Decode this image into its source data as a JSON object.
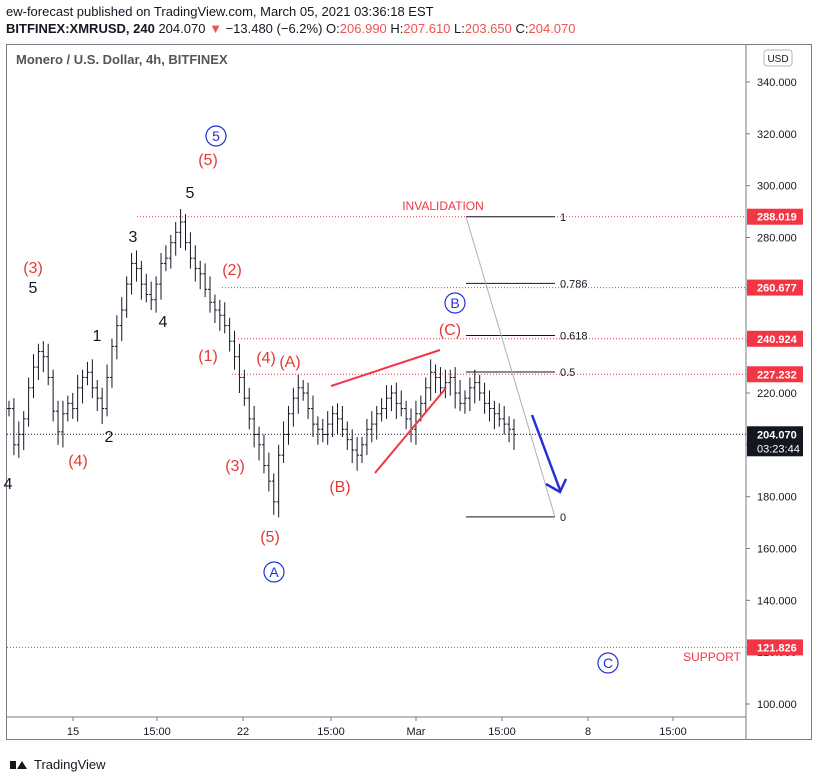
{
  "header": {
    "publisher": "ew-forecast published on TradingView.com, March 05, 2021 03:36:18 EST",
    "symbol": "BITFINEX:XMRUSD, 240",
    "last": "204.070",
    "arrow": "▼",
    "change": "−13.480 (−6.2%)",
    "o_label": "O:",
    "o": "206.990",
    "h_label": "H:",
    "h": "207.610",
    "l_label": "L:",
    "l": "203.650",
    "c_label": "C:",
    "c": "204.070"
  },
  "chart_data": {
    "type": "bar",
    "title": "Monero / U.S. Dollar, 4h, BITFINEX",
    "currency_button": "USD",
    "y_ticks": [
      340,
      320,
      300,
      280,
      260,
      240,
      220,
      200,
      180,
      160,
      140,
      120,
      100
    ],
    "y_tick_labels": [
      "340.000",
      "320.000",
      "300.000",
      "280.000",
      "260.000",
      "240.000",
      "220.000",
      "200.000",
      "180.000",
      "160.000",
      "140.000",
      "120.000",
      "100.000"
    ],
    "ylim": [
      94,
      352
    ],
    "x_ticks": [
      "15",
      "15:00",
      "22",
      "15:00",
      "Mar",
      "15:00",
      "8",
      "15:00"
    ],
    "price_labels": [
      {
        "value": 288.019,
        "text": "288.019",
        "color": "#f23645"
      },
      {
        "value": 260.677,
        "text": "260.677",
        "color": "#f23645"
      },
      {
        "value": 240.924,
        "text": "240.924",
        "color": "#f23645"
      },
      {
        "value": 227.232,
        "text": "227.232",
        "color": "#f23645"
      },
      {
        "value": 204.07,
        "text": "204.070",
        "color": "#131722"
      },
      {
        "value": 121.826,
        "text": "121.826",
        "color": "#f23645"
      }
    ],
    "countdown": "03:23:44",
    "fib_levels": [
      {
        "ratio": "1",
        "value": 288.0
      },
      {
        "ratio": "0.786",
        "value": 262.3
      },
      {
        "ratio": "0.618",
        "value": 242.2
      },
      {
        "ratio": "0.5",
        "value": 228.1
      },
      {
        "ratio": "0",
        "value": 172.2
      }
    ],
    "annotations": {
      "invalidation": "INVALIDATION",
      "support": "SUPPORT",
      "wave_labels": [
        "(3)",
        "5",
        "1",
        "(4)",
        "2",
        "3",
        "4",
        "5",
        "(5)",
        "5",
        "(2)",
        "(1)",
        "(4)",
        "(A)",
        "(3)",
        "(5)",
        "A",
        "(B)",
        "B",
        "(C)",
        "C",
        "4"
      ]
    },
    "close_series": [
      214,
      200,
      204,
      210,
      222,
      230,
      236,
      234,
      226,
      213,
      205,
      212,
      216,
      214,
      222,
      226,
      228,
      222,
      218,
      214,
      226,
      238,
      246,
      252,
      262,
      270,
      268,
      262,
      258,
      256,
      262,
      270,
      272,
      278,
      282,
      286,
      278,
      272,
      268,
      266,
      260,
      255,
      252,
      250,
      246,
      240,
      234,
      226,
      218,
      210,
      204,
      200,
      192,
      186,
      178,
      196,
      204,
      212,
      218,
      222,
      220,
      214,
      208,
      206,
      204,
      208,
      212,
      210,
      206,
      202,
      198,
      196,
      200,
      206,
      208,
      212,
      214,
      218,
      220,
      216,
      214,
      210,
      206,
      212,
      216,
      222,
      228,
      226,
      222,
      224,
      226,
      220,
      216,
      218,
      222,
      224,
      220,
      216,
      214,
      212,
      210,
      208,
      206,
      204
    ]
  }
}
